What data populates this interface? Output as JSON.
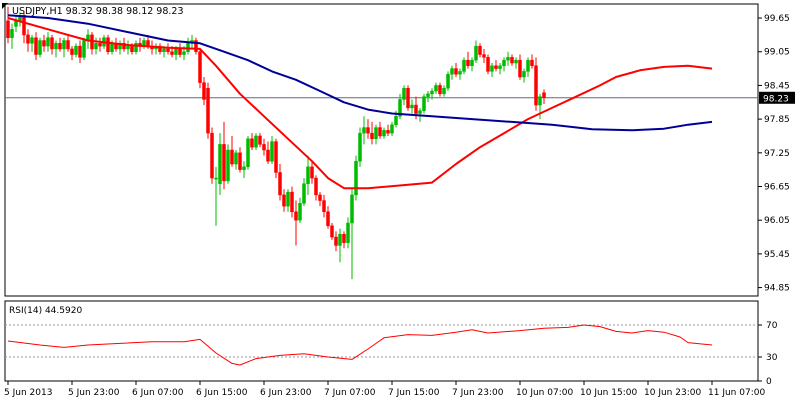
{
  "chart_data": [
    {
      "type": "candlestick",
      "symbol_label": "USDJPY,H1",
      "ohlc_label": "98.32 98.38 98.12 98.23",
      "current_price": 98.23,
      "current_price_label": "98.23",
      "ylim": [
        94.7,
        99.9
      ],
      "yticks": [
        {
          "value": 99.65,
          "label": "99.65"
        },
        {
          "value": 99.05,
          "label": "99.05"
        },
        {
          "value": 98.45,
          "label": "98.45"
        },
        {
          "value": 97.85,
          "label": "97.85"
        },
        {
          "value": 97.25,
          "label": "97.25"
        },
        {
          "value": 96.65,
          "label": "96.65"
        },
        {
          "value": 96.05,
          "label": "96.05"
        },
        {
          "value": 95.45,
          "label": "95.45"
        },
        {
          "value": 94.85,
          "label": "94.85"
        }
      ],
      "xticks": [
        {
          "index": 0,
          "label": "5 Jun 2013"
        },
        {
          "index": 16,
          "label": "5 Jun 23:00"
        },
        {
          "index": 32,
          "label": "6 Jun 07:00"
        },
        {
          "index": 48,
          "label": "6 Jun 15:00"
        },
        {
          "index": 64,
          "label": "6 Jun 23:00"
        },
        {
          "index": 80,
          "label": "7 Jun 07:00"
        },
        {
          "index": 96,
          "label": "7 Jun 15:00"
        },
        {
          "index": 112,
          "label": "7 Jun 23:00"
        },
        {
          "index": 128,
          "label": "10 Jun 07:00"
        },
        {
          "index": 144,
          "label": "10 Jun 15:00"
        },
        {
          "index": 160,
          "label": "10 Jun 23:00"
        },
        {
          "index": 176,
          "label": "11 Jun 07:00"
        }
      ],
      "candles": [
        [
          99.6,
          99.85,
          99.2,
          99.3
        ],
        [
          99.3,
          99.55,
          99.1,
          99.45
        ],
        [
          99.5,
          99.7,
          99.4,
          99.6
        ],
        [
          99.6,
          99.75,
          99.5,
          99.7
        ],
        [
          99.7,
          99.75,
          99.2,
          99.35
        ],
        [
          99.35,
          99.45,
          99.05,
          99.2
        ],
        [
          99.2,
          99.35,
          99.05,
          99.3
        ],
        [
          99.3,
          99.4,
          98.9,
          99.0
        ],
        [
          99.0,
          99.3,
          98.95,
          99.25
        ],
        [
          99.25,
          99.35,
          99.05,
          99.15
        ],
        [
          99.15,
          99.4,
          99.05,
          99.3
        ],
        [
          99.3,
          99.35,
          99.0,
          99.1
        ],
        [
          99.1,
          99.25,
          98.95,
          99.2
        ],
        [
          99.2,
          99.3,
          99.05,
          99.1
        ],
        [
          99.1,
          99.3,
          98.95,
          99.25
        ],
        [
          99.25,
          99.35,
          99.05,
          99.1
        ],
        [
          99.1,
          99.15,
          98.9,
          99.0
        ],
        [
          99.0,
          99.2,
          98.95,
          99.15
        ],
        [
          99.15,
          99.25,
          98.85,
          98.95
        ],
        [
          98.95,
          99.3,
          98.9,
          99.25
        ],
        [
          99.25,
          99.45,
          99.1,
          99.35
        ],
        [
          99.35,
          99.4,
          99.0,
          99.1
        ],
        [
          99.1,
          99.3,
          99.0,
          99.2
        ],
        [
          99.2,
          99.3,
          99.05,
          99.15
        ],
        [
          99.15,
          99.35,
          99.1,
          99.3
        ],
        [
          99.3,
          99.35,
          99.0,
          99.05
        ],
        [
          99.05,
          99.25,
          99.0,
          99.2
        ],
        [
          99.2,
          99.3,
          99.05,
          99.1
        ],
        [
          99.1,
          99.25,
          99.0,
          99.2
        ],
        [
          99.2,
          99.3,
          99.05,
          99.1
        ],
        [
          99.1,
          99.25,
          99.0,
          99.15
        ],
        [
          99.15,
          99.2,
          99.0,
          99.05
        ],
        [
          99.05,
          99.25,
          99.0,
          99.2
        ],
        [
          99.2,
          99.3,
          99.05,
          99.15
        ],
        [
          99.15,
          99.3,
          99.1,
          99.25
        ],
        [
          99.25,
          99.35,
          99.1,
          99.15
        ],
        [
          99.15,
          99.25,
          99.0,
          99.1
        ],
        [
          99.1,
          99.2,
          99.0,
          99.15
        ],
        [
          99.15,
          99.2,
          99.0,
          99.05
        ],
        [
          99.05,
          99.15,
          98.95,
          99.1
        ],
        [
          99.1,
          99.2,
          99.0,
          99.05
        ],
        [
          99.05,
          99.15,
          98.95,
          99.0
        ],
        [
          99.0,
          99.15,
          98.9,
          99.1
        ],
        [
          99.1,
          99.2,
          98.95,
          99.0
        ],
        [
          99.0,
          99.15,
          98.9,
          99.05
        ],
        [
          99.05,
          99.3,
          99.0,
          99.2
        ],
        [
          99.2,
          99.35,
          99.1,
          99.25
        ],
        [
          99.25,
          99.3,
          99.0,
          99.05
        ],
        [
          99.05,
          99.1,
          98.4,
          98.5
        ],
        [
          98.5,
          98.6,
          98.1,
          98.2
        ],
        [
          98.4,
          98.5,
          97.5,
          97.6
        ],
        [
          97.6,
          97.7,
          96.7,
          96.8
        ],
        [
          96.8,
          97.0,
          95.95,
          96.8
        ],
        [
          96.7,
          97.6,
          96.5,
          97.4
        ],
        [
          97.4,
          97.8,
          96.6,
          96.75
        ],
        [
          96.75,
          97.4,
          96.7,
          97.3
        ],
        [
          97.3,
          97.55,
          97.0,
          97.05
        ],
        [
          97.05,
          97.3,
          96.95,
          97.25
        ],
        [
          97.25,
          97.35,
          96.9,
          96.95
        ],
        [
          96.95,
          97.1,
          96.8,
          97.0
        ],
        [
          97.0,
          97.55,
          96.95,
          97.5
        ],
        [
          97.5,
          97.6,
          97.3,
          97.35
        ],
        [
          97.35,
          97.6,
          97.3,
          97.55
        ],
        [
          97.55,
          97.6,
          97.35,
          97.4
        ],
        [
          97.4,
          97.5,
          97.2,
          97.3
        ],
        [
          97.3,
          97.45,
          97.05,
          97.1
        ],
        [
          97.1,
          97.55,
          97.05,
          97.45
        ],
        [
          97.45,
          97.5,
          96.8,
          96.9
        ],
        [
          96.9,
          97.05,
          96.4,
          96.5
        ],
        [
          96.5,
          96.6,
          96.2,
          96.3
        ],
        [
          96.3,
          96.6,
          96.2,
          96.55
        ],
        [
          96.55,
          96.65,
          96.1,
          96.2
        ],
        [
          96.2,
          96.4,
          95.6,
          96.05
        ],
        [
          96.05,
          96.45,
          96.0,
          96.35
        ],
        [
          96.35,
          96.8,
          96.3,
          96.7
        ],
        [
          96.7,
          97.2,
          96.5,
          97.0
        ],
        [
          97.0,
          97.1,
          96.7,
          96.8
        ],
        [
          96.8,
          96.85,
          96.4,
          96.5
        ],
        [
          96.5,
          96.55,
          96.3,
          96.4
        ],
        [
          96.4,
          96.5,
          96.1,
          96.2
        ],
        [
          96.2,
          96.3,
          95.9,
          95.95
        ],
        [
          95.95,
          96.0,
          95.7,
          95.75
        ],
        [
          95.75,
          95.85,
          95.5,
          95.6
        ],
        [
          95.6,
          95.9,
          95.3,
          95.8
        ],
        [
          95.8,
          95.85,
          95.55,
          95.65
        ],
        [
          95.65,
          96.1,
          95.55,
          96.0
        ],
        [
          96.0,
          96.6,
          95.0,
          96.5
        ],
        [
          96.5,
          97.2,
          96.4,
          97.1
        ],
        [
          97.1,
          97.7,
          97.0,
          97.6
        ],
        [
          97.6,
          97.9,
          97.4,
          97.7
        ],
        [
          97.7,
          97.85,
          97.5,
          97.6
        ],
        [
          97.6,
          97.8,
          97.4,
          97.5
        ],
        [
          97.5,
          97.75,
          97.4,
          97.7
        ],
        [
          97.7,
          97.8,
          97.5,
          97.55
        ],
        [
          97.55,
          97.7,
          97.5,
          97.65
        ],
        [
          97.65,
          97.75,
          97.55,
          97.6
        ],
        [
          97.6,
          97.8,
          97.55,
          97.75
        ],
        [
          97.75,
          98.0,
          97.7,
          97.9
        ],
        [
          97.9,
          98.3,
          97.85,
          98.2
        ],
        [
          98.2,
          98.45,
          98.1,
          98.4
        ],
        [
          98.4,
          98.45,
          98.0,
          98.05
        ],
        [
          98.05,
          98.2,
          97.95,
          98.1
        ],
        [
          98.1,
          98.25,
          97.85,
          97.95
        ],
        [
          97.95,
          98.05,
          97.8,
          98.0
        ],
        [
          98.0,
          98.3,
          97.95,
          98.25
        ],
        [
          98.25,
          98.35,
          98.15,
          98.3
        ],
        [
          98.3,
          98.4,
          98.2,
          98.35
        ],
        [
          98.35,
          98.5,
          98.3,
          98.45
        ],
        [
          98.45,
          98.5,
          98.25,
          98.3
        ],
        [
          98.3,
          98.45,
          98.25,
          98.4
        ],
        [
          98.4,
          98.7,
          98.35,
          98.65
        ],
        [
          98.65,
          98.8,
          98.55,
          98.75
        ],
        [
          98.75,
          98.85,
          98.6,
          98.65
        ],
        [
          98.65,
          98.75,
          98.55,
          98.7
        ],
        [
          98.7,
          98.95,
          98.65,
          98.9
        ],
        [
          98.9,
          99.05,
          98.75,
          98.8
        ],
        [
          98.8,
          98.95,
          98.7,
          98.9
        ],
        [
          98.9,
          99.25,
          98.85,
          99.15
        ],
        [
          99.15,
          99.2,
          98.95,
          99.0
        ],
        [
          99.0,
          99.1,
          98.85,
          98.95
        ],
        [
          98.95,
          99.0,
          98.65,
          98.7
        ],
        [
          98.7,
          98.85,
          98.6,
          98.8
        ],
        [
          98.8,
          98.9,
          98.7,
          98.75
        ],
        [
          98.75,
          98.85,
          98.65,
          98.8
        ],
        [
          98.8,
          98.95,
          98.7,
          98.9
        ],
        [
          98.9,
          99.05,
          98.8,
          98.95
        ],
        [
          98.95,
          99.0,
          98.8,
          98.85
        ],
        [
          98.85,
          98.95,
          98.75,
          98.9
        ],
        [
          98.9,
          99.0,
          98.55,
          98.6
        ],
        [
          98.6,
          98.75,
          98.5,
          98.7
        ],
        [
          98.7,
          98.95,
          98.6,
          98.9
        ],
        [
          98.9,
          99.0,
          98.75,
          98.8
        ],
        [
          98.8,
          98.95,
          98.0,
          98.1
        ],
        [
          98.1,
          98.3,
          97.85,
          98.25
        ],
        [
          98.32,
          98.38,
          98.12,
          98.23
        ]
      ],
      "moving_averages": [
        {
          "color": "#ff0000",
          "values": [
            [
              0,
              99.65
            ],
            [
              10,
              99.45
            ],
            [
              20,
              99.25
            ],
            [
              30,
              99.17
            ],
            [
              40,
              99.12
            ],
            [
              48,
              99.1
            ],
            [
              52,
              98.8
            ],
            [
              58,
              98.3
            ],
            [
              64,
              97.9
            ],
            [
              70,
              97.5
            ],
            [
              76,
              97.1
            ],
            [
              80,
              96.8
            ],
            [
              84,
              96.62
            ],
            [
              90,
              96.62
            ],
            [
              100,
              96.68
            ],
            [
              106,
              96.72
            ],
            [
              112,
              97.05
            ],
            [
              118,
              97.35
            ],
            [
              124,
              97.6
            ],
            [
              130,
              97.85
            ],
            [
              136,
              98.05
            ],
            [
              142,
              98.25
            ],
            [
              148,
              98.45
            ],
            [
              152,
              98.6
            ],
            [
              158,
              98.72
            ],
            [
              164,
              98.78
            ],
            [
              170,
              98.8
            ],
            [
              176,
              98.75
            ]
          ]
        },
        {
          "color": "#000099",
          "values": [
            [
              0,
              99.7
            ],
            [
              10,
              99.65
            ],
            [
              20,
              99.55
            ],
            [
              30,
              99.4
            ],
            [
              40,
              99.25
            ],
            [
              48,
              99.2
            ],
            [
              54,
              99.05
            ],
            [
              60,
              98.9
            ],
            [
              66,
              98.7
            ],
            [
              72,
              98.55
            ],
            [
              78,
              98.35
            ],
            [
              84,
              98.15
            ],
            [
              90,
              98.02
            ],
            [
              96,
              97.95
            ],
            [
              106,
              97.9
            ],
            [
              116,
              97.85
            ],
            [
              126,
              97.8
            ],
            [
              136,
              97.75
            ],
            [
              146,
              97.67
            ],
            [
              156,
              97.65
            ],
            [
              164,
              97.68
            ],
            [
              170,
              97.75
            ],
            [
              176,
              97.8
            ]
          ]
        }
      ]
    },
    {
      "type": "line",
      "label": "RSI(14) 44.5920",
      "ylim": [
        0,
        100
      ],
      "yticks": [
        {
          "value": 70,
          "label": "70"
        },
        {
          "value": 30,
          "label": "30"
        },
        {
          "value": 0,
          "label": "0"
        }
      ],
      "levels": [
        70,
        30
      ],
      "color": "#ff0000",
      "values": [
        [
          0,
          50
        ],
        [
          8,
          45
        ],
        [
          14,
          42
        ],
        [
          20,
          45
        ],
        [
          28,
          47
        ],
        [
          36,
          49
        ],
        [
          44,
          49
        ],
        [
          48,
          52
        ],
        [
          52,
          35
        ],
        [
          56,
          22
        ],
        [
          58,
          20
        ],
        [
          62,
          28
        ],
        [
          68,
          32
        ],
        [
          74,
          34
        ],
        [
          80,
          30
        ],
        [
          86,
          27
        ],
        [
          90,
          40
        ],
        [
          94,
          54
        ],
        [
          100,
          58
        ],
        [
          106,
          57
        ],
        [
          112,
          61
        ],
        [
          116,
          64
        ],
        [
          120,
          60
        ],
        [
          128,
          63
        ],
        [
          134,
          66
        ],
        [
          140,
          67
        ],
        [
          144,
          70
        ],
        [
          148,
          68
        ],
        [
          152,
          62
        ],
        [
          156,
          60
        ],
        [
          160,
          63
        ],
        [
          164,
          61
        ],
        [
          168,
          55
        ],
        [
          170,
          48
        ],
        [
          176,
          45
        ]
      ]
    }
  ]
}
